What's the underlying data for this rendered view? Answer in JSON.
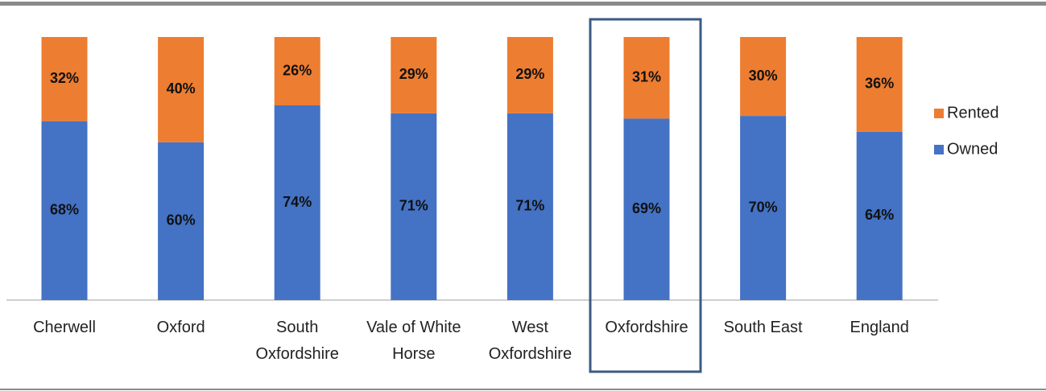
{
  "chart_data": {
    "type": "stacked_bar",
    "categories": [
      "Cherwell",
      "Oxford",
      "South Oxfordshire",
      "Vale of White Horse",
      "West Oxfordshire",
      "Oxfordshire",
      "South East",
      "England"
    ],
    "series": [
      {
        "name": "Owned",
        "color": "#4472c4",
        "values": [
          68,
          60,
          74,
          71,
          71,
          69,
          70,
          64
        ],
        "value_labels": [
          "68%",
          "60%",
          "74%",
          "71%",
          "71%",
          "69%",
          "70%",
          "64%"
        ]
      },
      {
        "name": "Rented",
        "color": "#ed7d31",
        "values": [
          32,
          40,
          26,
          29,
          29,
          31,
          30,
          36
        ],
        "value_labels": [
          "32%",
          "40%",
          "26%",
          "29%",
          "29%",
          "31%",
          "30%",
          "36%"
        ]
      }
    ],
    "ylim": [
      0,
      100
    ]
  }
}
